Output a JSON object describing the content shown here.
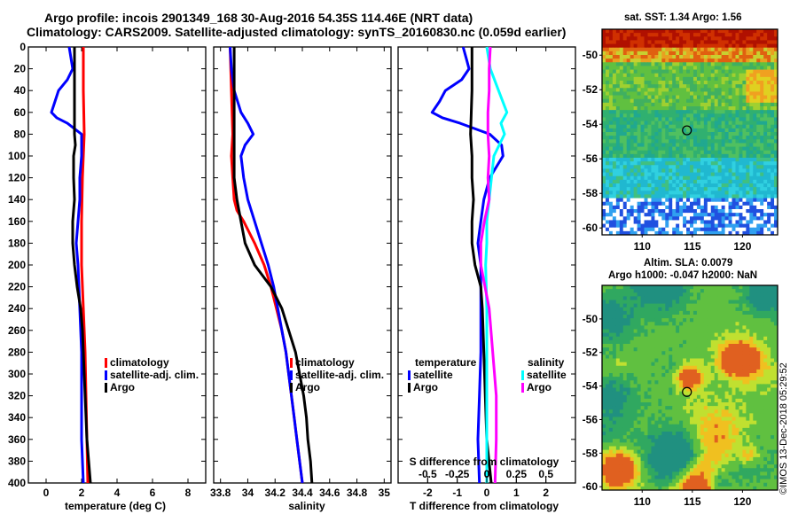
{
  "header": {
    "line1": "Argo profile: incois 2901349_168 30-Aug-2016 54.35S 114.46E (NRT data)",
    "line2": "Climatology: CARS2009. Satellite-adjusted climatology: synTS_20160830.nc (0.059d earlier)"
  },
  "maps": {
    "sst_title": "sat. SST: 1.34 Argo: 1.56",
    "sla_title1": "Altim. SLA: 0.0079",
    "sla_title2": "Argo h1000: -0.047 h2000: NaN",
    "sst_lat_ticks": [
      "-50",
      "-52",
      "-54",
      "-56",
      "-58",
      "-60"
    ],
    "sst_lon_ticks": [
      "110",
      "115",
      "120"
    ],
    "sla_lat_ticks": [
      "-50",
      "-52",
      "-54",
      "-56",
      "-58",
      "-60"
    ],
    "sla_lon_ticks": [
      "110",
      "115",
      "120"
    ],
    "lon_range": [
      106,
      123.5
    ],
    "sst_lat_range": [
      -48.5,
      -60.4
    ],
    "sla_lat_range": [
      -48.0,
      -60.2
    ],
    "argo_position": {
      "lat": -54.35,
      "lon": 114.46
    }
  },
  "stamp": "©IMOS 13-Dec-2018 05:29:52",
  "colors": {
    "climatology": "#ff0000",
    "satellite": "#0000ff",
    "argo": "#000000",
    "sal_satellite": "#00ffff",
    "sal_argo": "#ff00ff"
  },
  "chart_data": [
    {
      "type": "line",
      "id": "temperature",
      "xlabel": "temperature (deg C)",
      "xlim": [
        -1,
        9
      ],
      "ylim": [
        0,
        400
      ],
      "xticks": [
        "0",
        "2",
        "4",
        "6",
        "8"
      ],
      "yticks": [
        "0",
        "20",
        "40",
        "60",
        "80",
        "100",
        "120",
        "140",
        "160",
        "180",
        "200",
        "220",
        "240",
        "260",
        "280",
        "300",
        "320",
        "340",
        "360",
        "380",
        "400"
      ],
      "legend": [
        "climatology",
        "satellite-adj. clim.",
        "Argo"
      ],
      "series": [
        {
          "name": "climatology",
          "color": "#ff0000",
          "depth": [
            0,
            40,
            80,
            120,
            160,
            200,
            240,
            280,
            320,
            360,
            400
          ],
          "values": [
            2.1,
            2.1,
            2.15,
            2.05,
            2.0,
            2.0,
            2.1,
            2.2,
            2.25,
            2.3,
            2.35
          ]
        },
        {
          "name": "satellite-adj. clim.",
          "color": "#0000ff",
          "depth": [
            0,
            10,
            20,
            30,
            40,
            50,
            60,
            65,
            70,
            80,
            100,
            120,
            140,
            160,
            180,
            200,
            240,
            280,
            320,
            360,
            400
          ],
          "values": [
            1.3,
            1.4,
            1.5,
            1.2,
            0.7,
            0.5,
            0.3,
            0.6,
            1.2,
            2.0,
            2.0,
            1.9,
            1.9,
            1.8,
            1.7,
            1.8,
            1.9,
            2.0,
            2.0,
            2.0,
            2.1
          ]
        },
        {
          "name": "Argo",
          "color": "#000000",
          "depth": [
            0,
            20,
            40,
            60,
            80,
            90,
            100,
            120,
            140,
            160,
            180,
            190,
            200,
            220,
            240,
            260,
            280,
            300,
            320,
            340,
            360,
            380,
            400
          ],
          "values": [
            1.6,
            1.6,
            1.6,
            1.6,
            1.6,
            1.65,
            1.55,
            1.55,
            1.6,
            1.5,
            1.5,
            1.55,
            1.6,
            1.75,
            1.95,
            2.05,
            2.1,
            2.15,
            2.2,
            2.25,
            2.3,
            2.4,
            2.5
          ]
        }
      ]
    },
    {
      "type": "line",
      "id": "salinity",
      "xlabel": "salinity",
      "xlim": [
        33.75,
        35.05
      ],
      "ylim": [
        0,
        400
      ],
      "xticks": [
        "33.8",
        "34",
        "34.2",
        "34.4",
        "34.6",
        "34.8",
        "35"
      ],
      "yticks": [
        "0",
        "20",
        "40",
        "60",
        "80",
        "100",
        "120",
        "140",
        "160",
        "180",
        "200",
        "220",
        "240",
        "260",
        "280",
        "300",
        "320",
        "340",
        "360",
        "380",
        "400"
      ],
      "legend": [
        "climatology",
        "satellite-adj. clim.",
        "Argo"
      ],
      "series": [
        {
          "name": "climatology",
          "color": "#ff0000",
          "depth": [
            0,
            40,
            80,
            100,
            120,
            140,
            150,
            160,
            180,
            200,
            220,
            240,
            260,
            280,
            300,
            320,
            340,
            360,
            380,
            400
          ],
          "values": [
            33.87,
            33.88,
            33.89,
            33.88,
            33.89,
            33.9,
            33.92,
            33.97,
            34.05,
            34.12,
            34.17,
            34.21,
            34.25,
            34.28,
            34.3,
            34.32,
            34.34,
            34.36,
            34.38,
            34.4
          ]
        },
        {
          "name": "satellite-adj. clim.",
          "color": "#0000ff",
          "depth": [
            0,
            20,
            40,
            60,
            70,
            80,
            90,
            100,
            120,
            140,
            160,
            180,
            200,
            220,
            240,
            260,
            280,
            300,
            320,
            340,
            360,
            380,
            400
          ],
          "values": [
            33.87,
            33.88,
            33.9,
            33.95,
            34.0,
            34.04,
            33.98,
            33.95,
            33.97,
            34.0,
            34.05,
            34.1,
            34.15,
            34.19,
            34.22,
            34.25,
            34.28,
            34.3,
            34.32,
            34.34,
            34.36,
            34.38,
            34.4
          ]
        },
        {
          "name": "Argo",
          "color": "#000000",
          "depth": [
            0,
            20,
            40,
            60,
            80,
            100,
            120,
            140,
            160,
            180,
            200,
            220,
            240,
            260,
            280,
            300,
            320,
            340,
            360,
            380,
            400
          ],
          "values": [
            33.9,
            33.9,
            33.9,
            33.9,
            33.9,
            33.9,
            33.9,
            33.92,
            33.95,
            33.98,
            34.05,
            34.17,
            34.25,
            34.3,
            34.35,
            34.38,
            34.41,
            34.43,
            34.44,
            34.46,
            34.47
          ]
        }
      ]
    },
    {
      "type": "line",
      "id": "difference",
      "xlabel": "T difference from climatology",
      "xlabel_top": "S difference from climatology",
      "xlim": [
        -3,
        3
      ],
      "s_lim": [
        -0.75,
        0.75
      ],
      "ylim": [
        0,
        400
      ],
      "xticks": [
        "-2",
        "-1",
        "0",
        "1",
        "2"
      ],
      "sticks": [
        "-0.5",
        "-0.25",
        "0",
        "0.25",
        "0.5"
      ],
      "yticks": [
        "0",
        "20",
        "40",
        "60",
        "80",
        "100",
        "120",
        "140",
        "160",
        "180",
        "200",
        "220",
        "240",
        "260",
        "280",
        "300",
        "320",
        "340",
        "360",
        "380",
        "400"
      ],
      "legend_left_title": "temperature",
      "legend_left": [
        "satellite",
        "Argo"
      ],
      "legend_right_title": "salinity",
      "legend_right": [
        "satellite",
        "Argo"
      ],
      "series": [
        {
          "name": "T satellite",
          "color": "#0000ff",
          "depth": [
            0,
            10,
            20,
            30,
            40,
            50,
            60,
            65,
            70,
            80,
            90,
            100,
            120,
            140,
            160,
            180,
            200,
            240,
            280,
            320,
            360,
            400
          ],
          "values": [
            -0.8,
            -0.7,
            -0.6,
            -0.85,
            -1.4,
            -1.6,
            -1.85,
            -1.5,
            -0.9,
            0.1,
            0.5,
            0.55,
            0.1,
            -0.1,
            -0.2,
            -0.3,
            -0.2,
            -0.2,
            -0.2,
            -0.25,
            -0.3,
            -0.25
          ]
        },
        {
          "name": "T Argo",
          "color": "#000000",
          "depth": [
            0,
            40,
            80,
            100,
            120,
            140,
            160,
            180,
            200,
            220,
            240,
            280,
            320,
            360,
            400
          ],
          "values": [
            -0.5,
            -0.5,
            -0.55,
            -0.5,
            -0.5,
            -0.45,
            -0.5,
            -0.5,
            -0.4,
            -0.2,
            -0.15,
            -0.1,
            -0.05,
            0.0,
            0.15
          ]
        },
        {
          "name": "S satellite",
          "color": "#00ffff",
          "depth": [
            0,
            20,
            40,
            60,
            70,
            80,
            100,
            120,
            140,
            160,
            180,
            200,
            240,
            280,
            320,
            360,
            400
          ],
          "values": [
            0.0,
            0.03,
            0.1,
            0.17,
            0.12,
            0.15,
            0.06,
            0.04,
            0.02,
            0.0,
            0.0,
            -0.01,
            0.0,
            0.0,
            0.0,
            0.0,
            0.0
          ]
        },
        {
          "name": "S Argo",
          "color": "#ff00ff",
          "depth": [
            0,
            20,
            40,
            60,
            80,
            100,
            120,
            140,
            160,
            180,
            200,
            240,
            280,
            320,
            360,
            400
          ],
          "values": [
            0.03,
            0.02,
            0.02,
            0.01,
            0.01,
            0.02,
            0.01,
            0.02,
            -0.02,
            -0.05,
            -0.05,
            0.02,
            0.05,
            0.08,
            0.08,
            0.07
          ]
        }
      ]
    }
  ]
}
